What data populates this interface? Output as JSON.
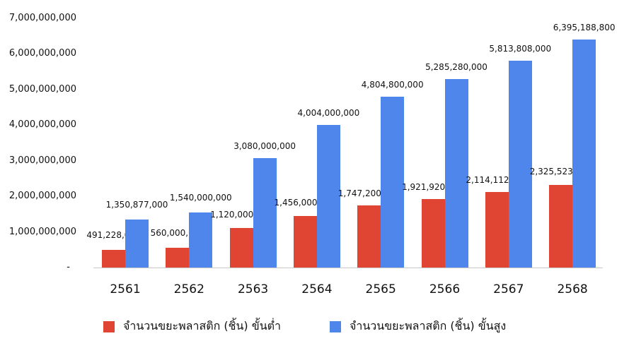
{
  "chart_data": {
    "type": "bar",
    "title": "",
    "xlabel": "",
    "ylabel": "",
    "ylim": [
      0,
      7000000000
    ],
    "yticks": [
      "-",
      "1,000,000,000",
      "2,000,000,000",
      "3,000,000,000",
      "4,000,000,000",
      "5,000,000,000",
      "6,000,000,000",
      "7,000,000,000"
    ],
    "categories": [
      "2561",
      "2562",
      "2563",
      "2564",
      "2565",
      "2566",
      "2567",
      "2568"
    ],
    "series": [
      {
        "name": "จำนวนขยะพลาสติก (ชิ้น) ขั้นต่ำ",
        "color": "#e04433",
        "values": [
          491228000,
          560000000,
          1120000000,
          1456000000,
          1747200000,
          1921920000,
          2114112000,
          2325523200
        ],
        "labels": [
          "491,228,000",
          "560,000,000",
          "1,120,000,000",
          "1,456,000,000",
          "1,747,200,000",
          "1,921,920,000",
          "2,114,112,000",
          "2,325,523,200"
        ]
      },
      {
        "name": "จำนวนขยะพลาสติก (ชิ้น) ขั้นสูง",
        "color": "#4f86ec",
        "values": [
          1350877000,
          1540000000,
          3080000000,
          4004000000,
          4804800000,
          5285280000,
          5813808000,
          6395188800
        ],
        "labels": [
          "1,350,877,000",
          "1,540,000,000",
          "3,080,000,000",
          "4,004,000,000",
          "4,804,800,000",
          "5,285,280,000",
          "5,813,808,000",
          "6,395,188,800"
        ]
      }
    ],
    "grid": false,
    "legend_position": "bottom"
  }
}
